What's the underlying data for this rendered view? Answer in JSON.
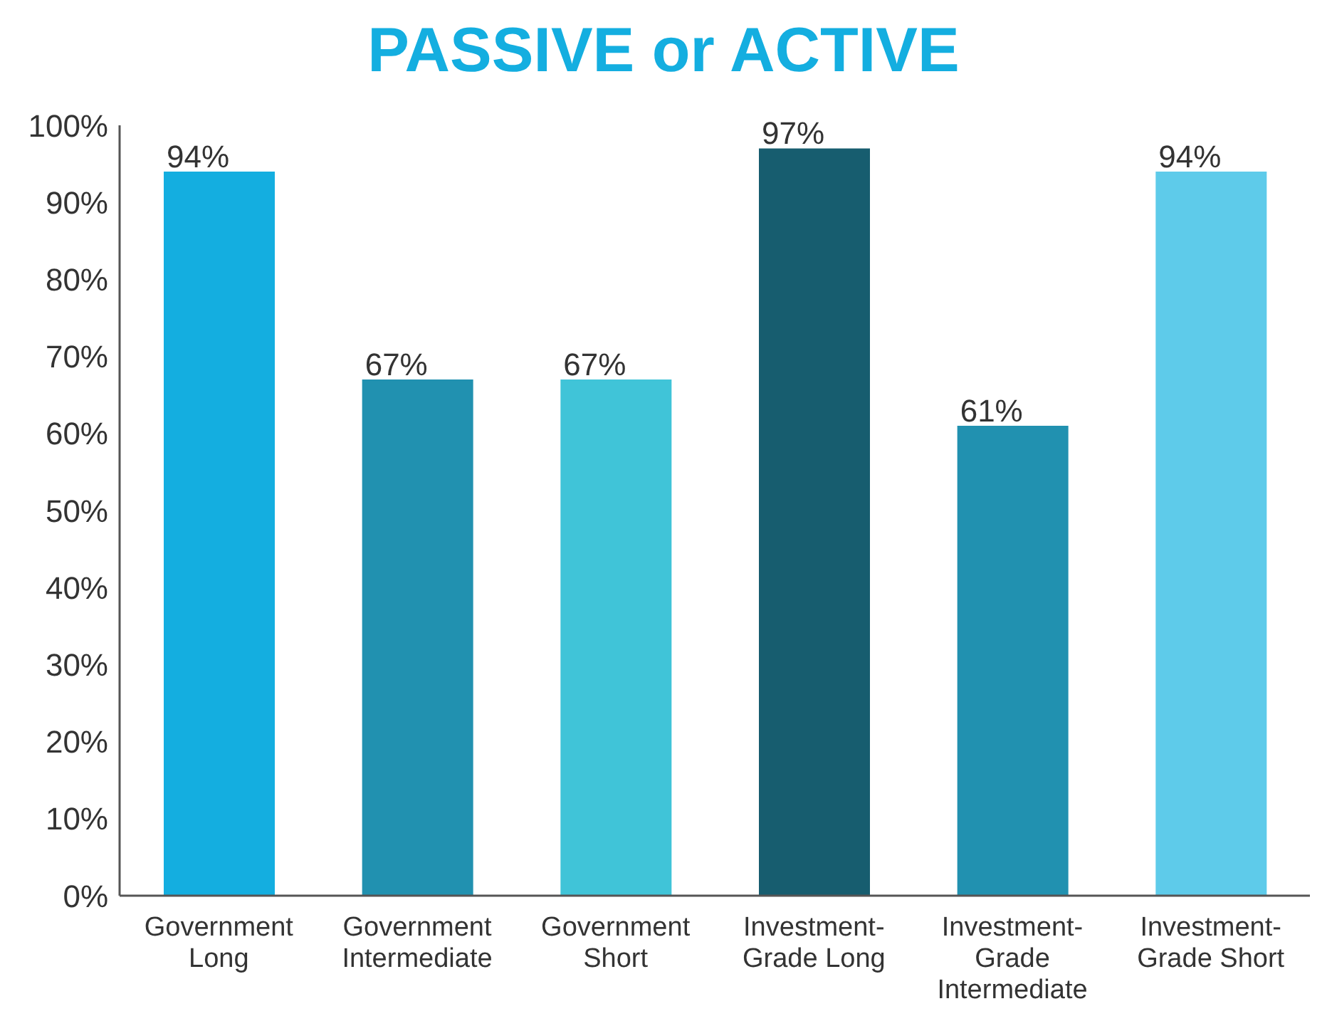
{
  "chart_data": {
    "type": "bar",
    "title": "PASSIVE or ACTIVE",
    "categories": [
      "Government Long",
      "Government Intermediate",
      "Government Short",
      "Investment-Grade Long",
      "Investment-Grade Intermediate",
      "Investment-Grade Short"
    ],
    "values": [
      94,
      67,
      67,
      97,
      61,
      94
    ],
    "colors": [
      "#14aee0",
      "#2191b0",
      "#40c4d8",
      "#175d6f",
      "#2191b0",
      "#5ecbea"
    ],
    "value_labels": [
      "94%",
      "67%",
      "67%",
      "97%",
      "61%",
      "94%"
    ],
    "ylim": [
      0,
      100
    ],
    "yticks": [
      {
        "value": 0,
        "label": "0%"
      },
      {
        "value": 10,
        "label": "10%"
      },
      {
        "value": 20,
        "label": "20%"
      },
      {
        "value": 30,
        "label": "30%"
      },
      {
        "value": 40,
        "label": "40%"
      },
      {
        "value": 50,
        "label": "50%"
      },
      {
        "value": 60,
        "label": "60%"
      },
      {
        "value": 70,
        "label": "70%"
      },
      {
        "value": 80,
        "label": "80%"
      },
      {
        "value": 90,
        "label": "90%"
      },
      {
        "value": 100,
        "label": "100%"
      }
    ],
    "grid": false,
    "legend": false
  }
}
